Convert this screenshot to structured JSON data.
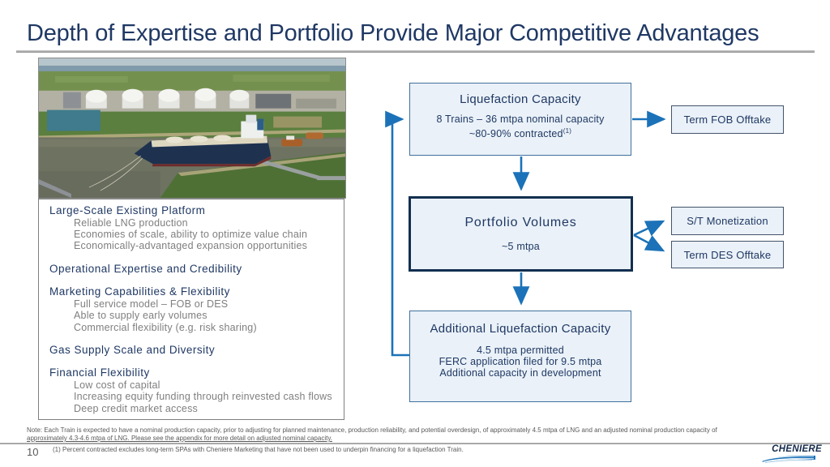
{
  "slide": {
    "title": "Depth of Expertise and Portfolio Provide Major Competitive Advantages",
    "page_number": "10"
  },
  "left_panel": {
    "photo": "aerial-photo-lng-terminal-with-carrier-ship",
    "sections": [
      {
        "heading": "Large-Scale Existing Platform",
        "items": [
          "Reliable LNG production",
          "Economies of scale, ability to optimize value chain",
          "Economically-advantaged expansion opportunities"
        ]
      },
      {
        "heading": "Operational Expertise and Credibility",
        "items": []
      },
      {
        "heading": "Marketing Capabilities & Flexibility",
        "items": [
          "Full service model – FOB or DES",
          "Able to supply early volumes",
          "Commercial flexibility (e.g. risk sharing)"
        ]
      },
      {
        "heading": "Gas Supply Scale and Diversity",
        "items": []
      },
      {
        "heading": "Financial Flexibility",
        "items": [
          "Low cost of capital",
          "Increasing equity funding through reinvested cash flows",
          "Deep credit market access"
        ]
      }
    ]
  },
  "diagram": {
    "liquefaction": {
      "title": "Liquefaction Capacity",
      "line1": "8 Trains – 36 mtpa nominal capacity",
      "line2": "~80-90% contracted",
      "sup": "(1)"
    },
    "portfolio": {
      "title": "Portfolio Volumes",
      "line1": "~5 mtpa"
    },
    "additional": {
      "title": "Additional Liquefaction Capacity",
      "lines": [
        "4.5 mtpa permitted",
        "FERC application filed for 9.5 mtpa",
        "Additional capacity in development"
      ]
    },
    "term_fob": {
      "label": "Term FOB Offtake"
    },
    "st_monetization": {
      "label": "S/T Monetization"
    },
    "term_des": {
      "label": "Term DES Offtake"
    }
  },
  "footer": {
    "note_line1": "Note: Each Train is expected to have a nominal production capacity, prior to adjusting for planned maintenance, production reliability,  and potential overdesign, of approximately 4.5 mtpa of LNG and an adjusted nominal production capacity of",
    "note_line2": "approximately 4.3-4.6 mtpa of LNG. Please see the appendix for more detail on adjusted nominal capacity.",
    "footnote": "(1)  Percent contracted excludes long-term SPAs with Cheniere Marketing that have not been used to underpin financing for a liquefaction Train.",
    "logo_text": "CHENIERE"
  },
  "colors": {
    "accent_blue": "#1b72b8",
    "navy": "#1f3864",
    "box_fill": "#eaf1f8",
    "box_border": "#41719c",
    "portfolio_border": "#122f4f",
    "small_box_border": "#44546a",
    "gray_text": "#7f7f7f",
    "divider_gray": "#a6a6a6",
    "footer_gray": "#595959"
  }
}
